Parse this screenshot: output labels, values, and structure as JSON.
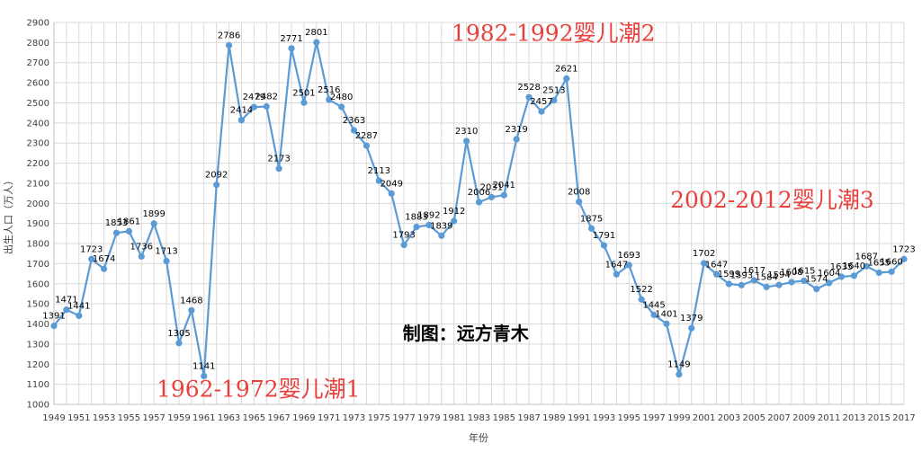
{
  "chart_data": {
    "type": "line",
    "title": "",
    "xlabel": "年份",
    "ylabel": "出生人口（万人）",
    "ylim": [
      1000,
      2900
    ],
    "ytick_step": 100,
    "x_tick_labels": [
      "1949",
      "1951",
      "1953",
      "1955",
      "1957",
      "1959",
      "1961",
      "1963",
      "1965",
      "1967",
      "1969",
      "1971",
      "1973",
      "1975",
      "1977",
      "1979",
      "1981",
      "1983",
      "1985",
      "1987",
      "1989",
      "1991",
      "1993",
      "1995",
      "1997",
      "1999",
      "2001",
      "2003",
      "2005",
      "2007",
      "2009",
      "2011",
      "2013",
      "2015",
      "2017"
    ],
    "grid": true,
    "legend": "none",
    "line_color": "#5b9bd5",
    "annotation_color": "#e8413c",
    "series": [
      {
        "x": [
          1949,
          1950,
          1951,
          1952,
          1953,
          1954,
          1955,
          1956,
          1957,
          1958,
          1959,
          1960,
          1961,
          1962,
          1963,
          1964,
          1965,
          1966,
          1967,
          1968,
          1969,
          1970,
          1971,
          1972,
          1973,
          1974,
          1975,
          1976,
          1977,
          1978,
          1979,
          1980,
          1981,
          1982,
          1983,
          1984,
          1985,
          1986,
          1987,
          1988,
          1989,
          1990,
          1991,
          1992,
          1993,
          1994,
          1995,
          1996,
          1997,
          1998,
          1999,
          2000,
          2001,
          2002,
          2003,
          2004,
          2005,
          2006,
          2007,
          2008,
          2009,
          2010,
          2011,
          2012,
          2013,
          2014,
          2015,
          2016,
          2017
        ],
        "values": [
          1391,
          1471,
          1441,
          1723,
          1674,
          1853,
          1861,
          1736,
          1899,
          1713,
          1305,
          1468,
          1141,
          2092,
          2786,
          2414,
          2479,
          2482,
          2173,
          2771,
          2501,
          2801,
          2516,
          2480,
          2363,
          2287,
          2113,
          2049,
          1793,
          1883,
          1892,
          1839,
          1912,
          2310,
          2006,
          2031,
          2041,
          2319,
          2528,
          2457,
          2513,
          2621,
          2008,
          1875,
          1791,
          1647,
          1693,
          1522,
          1445,
          1401,
          1149,
          1379,
          1702,
          1647,
          1599,
          1593,
          1617,
          1584,
          1594,
          1608,
          1615,
          1574,
          1604,
          1635,
          1640,
          1687,
          1655,
          1660,
          1723
        ],
        "labels": [
          "1391",
          "1471",
          "1441",
          "1723",
          "1674",
          "1853",
          "1861",
          "1736",
          "1899",
          "1713",
          "1305",
          "1468",
          "1141",
          "2092",
          "2786",
          "2414",
          "2479",
          "2482",
          "2173",
          "2771",
          "2501",
          "2801",
          "2516",
          "2480",
          "2363",
          "2287",
          "2113",
          "2049",
          "1793",
          "1883",
          "1892",
          "1839",
          "1912",
          "2310",
          "2006",
          "2031",
          "2041",
          "2319",
          "2528",
          "2457",
          "2513",
          "2621",
          "2008",
          "1875",
          "1791",
          "1647",
          "1693",
          "1522",
          "1445",
          "1401",
          "1149",
          "1379",
          "1702",
          "1647",
          "1599",
          "1593",
          "1617",
          "1584",
          "1594",
          "1608",
          "1615",
          "1574",
          "1604",
          "1635",
          "1640",
          "1687",
          "1655",
          "1660",
          "1723"
        ]
      }
    ],
    "annotations": [
      {
        "text": "1962-1972婴儿潮1",
        "color": "red",
        "x": 1957.2,
        "y": 1038
      },
      {
        "text": "1982-1992婴儿潮2",
        "color": "red",
        "x": 1980.8,
        "y": 2808
      },
      {
        "text": "2002-2012婴儿潮3",
        "color": "red",
        "x": 1998.3,
        "y": 1978
      },
      {
        "text": "制图：远方青木",
        "color": "black",
        "x": 1976.9,
        "y": 1322
      }
    ]
  }
}
